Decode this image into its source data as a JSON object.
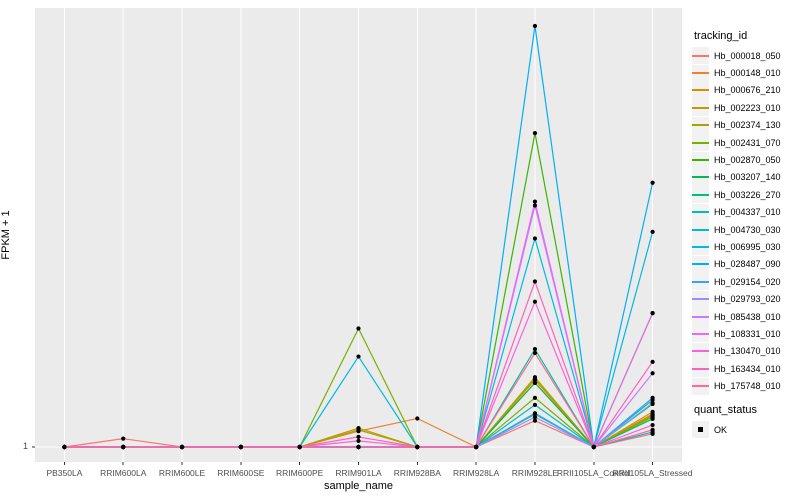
{
  "colors": {
    "background": "#FFFFFF",
    "panel_bg": "#EBEBEB",
    "grid": "#FFFFFF",
    "axis_text": "#4D4D4D",
    "tick_mark": "#333333",
    "point": "#000000",
    "legend_key_bg": "#F2F2F2"
  },
  "axes": {
    "x_title": "sample_name",
    "y_title": "FPKM + 1",
    "y_tick_labels": [
      "1"
    ]
  },
  "legend": {
    "tracking_id_title": "tracking_id",
    "quant_status_title": "quant_status",
    "quant_status_items": [
      "OK"
    ]
  },
  "chart_data": {
    "type": "line",
    "title": "",
    "xlabel": "sample_name",
    "ylabel": "FPKM + 1",
    "grid": "on",
    "legend_position": "right",
    "x_categories": [
      "PB350LA",
      "RRIM600LA",
      "RRIM600LE",
      "RRIM600SE",
      "RRIM600PE",
      "RRIM901LA",
      "RRIM928BA",
      "RRIM928LA",
      "RRIM928LE",
      "RRII105LA_Control",
      "RRII105LA_Stressed"
    ],
    "y_axis": {
      "labeled_ticks": [
        1
      ],
      "note": "only the value 1 is labeled on the y axis; series values are stored as fraction of panel height above the y=1 baseline (0 = FPKM+1 = 1, 1 = top of panel)"
    },
    "quant_status": "OK",
    "series": [
      {
        "name": "Hb_000018_050",
        "color": "#F8766D",
        "relative_heights": [
          0,
          0.019,
          0,
          0,
          0,
          0,
          0,
          0,
          0.06,
          0,
          0.03
        ]
      },
      {
        "name": "Hb_000148_010",
        "color": "#EA8331",
        "relative_heights": [
          0,
          0,
          0,
          0,
          0,
          0.036,
          0.065,
          0,
          0.146,
          0,
          0.075
        ]
      },
      {
        "name": "Hb_000676_210",
        "color": "#D89000",
        "relative_heights": [
          0,
          0,
          0,
          0,
          0,
          0,
          0,
          0,
          0.153,
          0,
          0.08
        ]
      },
      {
        "name": "Hb_002223_010",
        "color": "#C09B00",
        "relative_heights": [
          0,
          0,
          0,
          0,
          0,
          0.043,
          0,
          0,
          0.159,
          0,
          0.073
        ]
      },
      {
        "name": "Hb_002374_130",
        "color": "#A3A500",
        "relative_heights": [
          0,
          0,
          0,
          0,
          0,
          0.039,
          0,
          0,
          0.155,
          0,
          0.068
        ]
      },
      {
        "name": "Hb_002431_070",
        "color": "#7CAE00",
        "relative_heights": [
          0,
          0,
          0,
          0,
          0,
          0.27,
          0,
          0,
          0.112,
          0,
          0.071
        ]
      },
      {
        "name": "Hb_002870_050",
        "color": "#39B600",
        "relative_heights": [
          0,
          0,
          0,
          0,
          0,
          0,
          0,
          0,
          0.715,
          0,
          0.305
        ]
      },
      {
        "name": "Hb_003207_140",
        "color": "#00BB4E",
        "relative_heights": [
          0,
          0,
          0,
          0,
          0,
          0,
          0,
          0,
          0.146,
          0,
          0.098
        ]
      },
      {
        "name": "Hb_003226_270",
        "color": "#00BF7D",
        "relative_heights": [
          0,
          0,
          0,
          0,
          0,
          0,
          0,
          0,
          0.075,
          0,
          0.064
        ]
      },
      {
        "name": "Hb_004337_010",
        "color": "#00C1A3",
        "relative_heights": [
          0,
          0,
          0,
          0,
          0,
          0,
          0,
          0,
          0.223,
          0,
          0.107
        ]
      },
      {
        "name": "Hb_004730_030",
        "color": "#00BFC4",
        "relative_heights": [
          0,
          0,
          0,
          0,
          0,
          0,
          0,
          0,
          0.096,
          0,
          0.034
        ]
      },
      {
        "name": "Hb_006995_030",
        "color": "#00BAE0",
        "relative_heights": [
          0,
          0,
          0,
          0,
          0,
          0.206,
          0,
          0,
          0.475,
          0,
          0.49
        ]
      },
      {
        "name": "Hb_028487_090",
        "color": "#00B0F6",
        "relative_heights": [
          0,
          0,
          0,
          0,
          0,
          0,
          0,
          0,
          0.959,
          0,
          0.602
        ]
      },
      {
        "name": "Hb_029154_020",
        "color": "#35A2FF",
        "relative_heights": [
          0,
          0,
          0,
          0,
          0,
          0,
          0,
          0,
          0.077,
          0,
          0.112
        ]
      },
      {
        "name": "Hb_029793_020",
        "color": "#9590FF",
        "relative_heights": [
          0,
          0,
          0,
          0,
          0,
          0,
          0,
          0,
          0.068,
          0,
          0.1
        ]
      },
      {
        "name": "Hb_085438_010",
        "color": "#C77CFF",
        "relative_heights": [
          0,
          0,
          0,
          0,
          0,
          0,
          0,
          0,
          0.55,
          0,
          0.168
        ]
      },
      {
        "name": "Hb_108331_010",
        "color": "#E76BF3",
        "relative_heights": [
          0,
          0,
          0,
          0,
          0,
          0,
          0,
          0,
          0.559,
          0,
          0.305
        ]
      },
      {
        "name": "Hb_130470_010",
        "color": "#FA62DB",
        "relative_heights": [
          0,
          0,
          0,
          0,
          0,
          0.014,
          0,
          0,
          0.331,
          0,
          0.05
        ]
      },
      {
        "name": "Hb_163434_010",
        "color": "#FF62BC",
        "relative_heights": [
          0,
          0,
          0,
          0,
          0,
          0.023,
          0,
          0,
          0.377,
          0,
          0.194
        ]
      },
      {
        "name": "Hb_175748_010",
        "color": "#FF6A98",
        "relative_heights": [
          0,
          0,
          0,
          0,
          0,
          0,
          0,
          0,
          0.214,
          0,
          0.039
        ]
      }
    ]
  }
}
